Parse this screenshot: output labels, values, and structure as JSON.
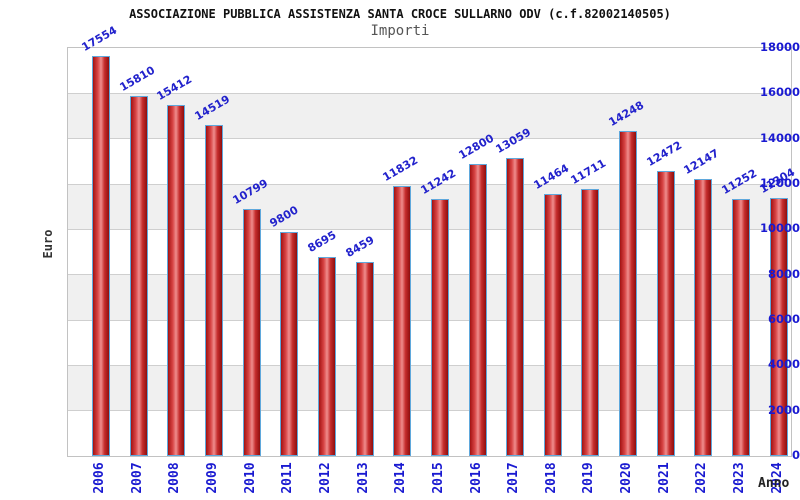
{
  "header": {
    "title": "ASSOCIAZIONE PUBBLICA ASSISTENZA SANTA CROCE SULLARNO ODV (c.f.82002140505)",
    "subtitle": "Importi"
  },
  "colors": {
    "label_blue": "#1a1ad1",
    "value_label_blue": "#2222cc",
    "bar_border_blue": "#5fa8dc",
    "bar_red_dark": "#a31212",
    "bar_red_light": "#ef8d8d",
    "band_gray": "#f0f0f0",
    "grid_gray": "#cfcfcf",
    "subtitle_gray": "#555555",
    "title_black": "#111111"
  },
  "chart_data": {
    "type": "bar",
    "title": "ASSOCIAZIONE PUBBLICA ASSISTENZA SANTA CROCE SULLARNO ODV (c.f.82002140505)",
    "subtitle": "Importi",
    "xlabel": "Anno",
    "ylabel": "Euro",
    "categories": [
      "2006",
      "2007",
      "2008",
      "2009",
      "2010",
      "2011",
      "2012",
      "2013",
      "2014",
      "2015",
      "2016",
      "2017",
      "2018",
      "2019",
      "2020",
      "2021",
      "2022",
      "2023",
      "2024"
    ],
    "values": [
      17554,
      15810,
      15412,
      14519,
      10799,
      9800,
      8695,
      8459,
      11832,
      11242,
      12800,
      13059,
      11464,
      11711,
      14248,
      12472,
      12147,
      11252,
      11304
    ],
    "ylim": [
      0,
      18000
    ],
    "ytick_step": 2000,
    "ytick_labels": [
      "0",
      "2000",
      "4000",
      "6000",
      "8000",
      "10000",
      "12000",
      "14000",
      "16000",
      "18000"
    ],
    "grid": true,
    "plot_bands": "alternating-horizontal",
    "legend_position": "none",
    "bar_value_labels_shown": true,
    "bar_value_label_rotation_deg": -30,
    "xtick_label_rotation_deg": -90
  }
}
